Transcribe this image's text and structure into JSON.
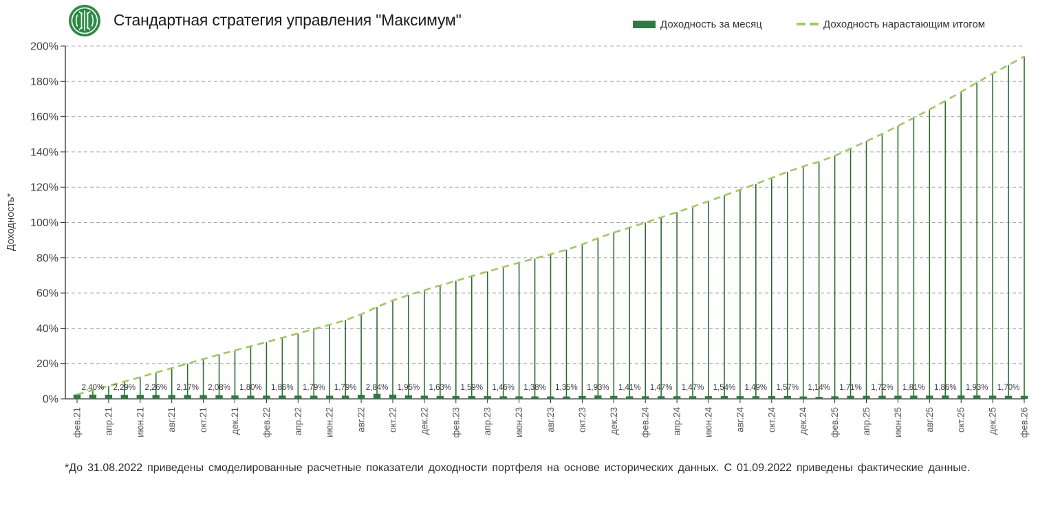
{
  "header": {
    "title": "Стандартная стратегия управления \"Максимум\""
  },
  "legend": {
    "items": [
      {
        "label": "Доходность за месяц",
        "type": "bar",
        "color": "#2e7b41"
      },
      {
        "label": "Доходность нарастающим итогом",
        "type": "dashed-line",
        "color": "#a2c957"
      }
    ]
  },
  "footer": {
    "note": "*До 31.08.2022 приведены смоделированные расчетные показатели доходности портфеля на основе исторических данных. С 01.09.2022 приведены фактические данные."
  },
  "colors": {
    "bar_green": "#2e7b41",
    "drop_line_green": "#2e6b33",
    "cumulative_line_green": "#a2c957",
    "logo_green": "#2e8b45"
  },
  "chart_data": {
    "type": "bar+line",
    "title": "Стандартная стратегия управления \"Максимум\"",
    "xlabel": "",
    "ylabel": "Доходность*",
    "ylim": [
      0,
      200
    ],
    "ytick_step": 20,
    "ytick_suffix": "%",
    "grid": "horizontal-dashed",
    "legend_position": "top-right",
    "x": [
      "фев.21",
      "мар.21",
      "апр.21",
      "май.21",
      "июн.21",
      "июл.21",
      "авг.21",
      "сен.21",
      "окт.21",
      "ноя.21",
      "дек.21",
      "янв.22",
      "фев.22",
      "мар.22",
      "апр.22",
      "май.22",
      "июн.22",
      "июл.22",
      "авг.22",
      "сен.22",
      "окт.22",
      "ноя.22",
      "дек.22",
      "янв.23",
      "фев.23",
      "мар.23",
      "апр.23",
      "май.23",
      "июн.23",
      "июл.23",
      "авг.23",
      "сен.23",
      "окт.23",
      "ноя.23",
      "дек.23",
      "янв.24",
      "фев.24",
      "мар.24",
      "апр.24",
      "май.24",
      "июн.24",
      "июл.24",
      "авг.24",
      "сен.24",
      "окт.24",
      "ноя.24",
      "дек.24",
      "янв.25",
      "фев.25",
      "мар.25",
      "апр.25",
      "май.25",
      "июн.25",
      "июл.25",
      "авг.25",
      "сен.25",
      "окт.25",
      "ноя.25",
      "дек.25",
      "янв.26",
      "фев.26"
    ],
    "xtick_every": 2,
    "series": [
      {
        "name": "Доходность за месяц",
        "type": "bar",
        "color": "#2e7b41",
        "values": [
          2.45,
          2.4,
          2.35,
          2.29,
          2.28,
          2.26,
          2.22,
          2.17,
          2.12,
          2.08,
          1.94,
          1.8,
          1.83,
          1.86,
          1.82,
          1.79,
          1.79,
          1.79,
          2.32,
          2.84,
          2.4,
          1.95,
          1.79,
          1.63,
          1.61,
          1.59,
          1.52,
          1.46,
          1.42,
          1.38,
          1.36,
          1.35,
          1.64,
          1.93,
          1.67,
          1.41,
          1.44,
          1.47,
          1.47,
          1.47,
          1.5,
          1.54,
          1.52,
          1.49,
          1.53,
          1.57,
          1.35,
          1.14,
          1.43,
          1.71,
          1.71,
          1.72,
          1.77,
          1.81,
          1.83,
          1.86,
          1.9,
          1.93,
          1.81,
          1.7,
          1.7
        ],
        "labels": [
          null,
          "2,40%",
          null,
          "2,29%",
          null,
          "2,26%",
          null,
          "2,17%",
          null,
          "2,08%",
          null,
          "1,80%",
          null,
          "1,86%",
          null,
          "1,79%",
          null,
          "1,79%",
          null,
          "2,84%",
          null,
          "1,95%",
          null,
          "1,63%",
          null,
          "1,59%",
          null,
          "1,46%",
          null,
          "1,38%",
          null,
          "1,35%",
          null,
          "1,93%",
          null,
          "1,41%",
          null,
          "1,47%",
          null,
          "1,47%",
          null,
          "1,54%",
          null,
          "1,49%",
          null,
          "1,57%",
          null,
          "1,14%",
          null,
          "1,71%",
          null,
          "1,72%",
          null,
          "1,81%",
          null,
          "1,86%",
          null,
          "1,93%",
          null,
          "1,70%",
          null
        ]
      },
      {
        "name": "Доходность нарастающим итогом",
        "type": "line",
        "style": "dashed",
        "color": "#a2c957",
        "values": [
          2.5,
          4.9,
          7.4,
          9.8,
          12.3,
          14.9,
          17.4,
          20.0,
          22.5,
          25.1,
          27.5,
          29.8,
          32.2,
          34.6,
          37.1,
          39.5,
          42.0,
          44.6,
          47.9,
          52.1,
          55.8,
          58.8,
          61.6,
          64.3,
          66.9,
          69.6,
          72.2,
          74.7,
          77.2,
          79.6,
          82.0,
          84.5,
          87.5,
          91.1,
          94.3,
          97.1,
          99.9,
          102.9,
          105.8,
          108.9,
          112.0,
          115.3,
          118.5,
          121.8,
          125.2,
          128.7,
          131.8,
          134.4,
          137.8,
          141.9,
          146.0,
          150.2,
          154.7,
          159.3,
          164.0,
          168.9,
          174.0,
          179.3,
          184.4,
          189.2,
          194.1
        ]
      }
    ]
  }
}
